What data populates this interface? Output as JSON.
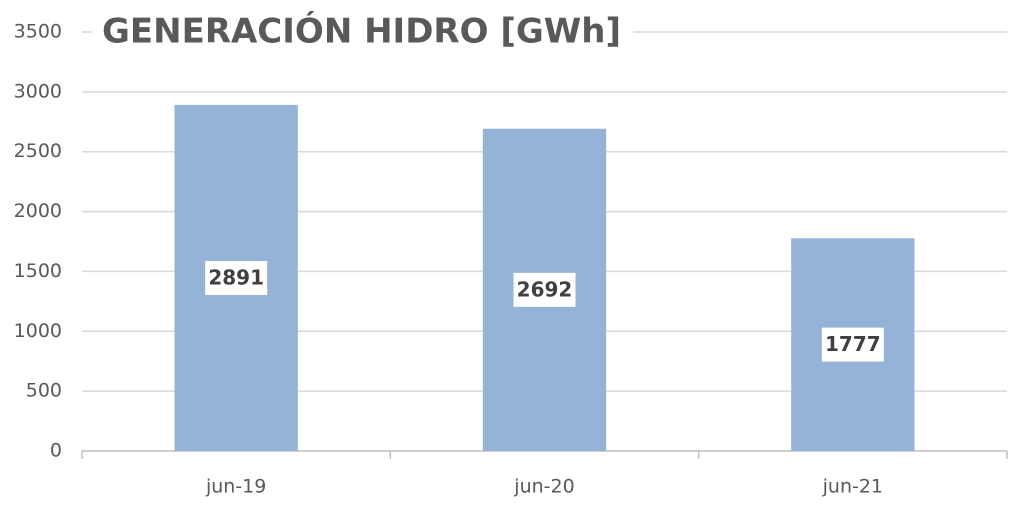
{
  "chart_data": {
    "type": "bar",
    "title": "GENERACIÓN HIDRO [GWh]",
    "categories": [
      "jun-19",
      "jun-20",
      "jun-21"
    ],
    "values": [
      2891,
      2692,
      1777
    ],
    "color": "#95b3d7",
    "ylim": [
      0,
      3500
    ],
    "yticks": [
      0,
      500,
      1000,
      1500,
      2000,
      2500,
      3000,
      3500
    ],
    "grid": true
  }
}
